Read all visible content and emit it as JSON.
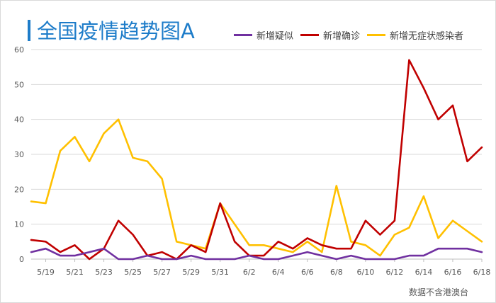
{
  "colors": {
    "title": "#1d7cc9",
    "series": [
      "#7030a0",
      "#c00000",
      "#ffc000"
    ],
    "grid": "#d9d9d9"
  },
  "source": "数据不含港澳台",
  "chart_data": {
    "type": "line",
    "title": "全国疫情趋势图A",
    "xlabel": "",
    "ylabel": "",
    "ylim": [
      0,
      60
    ],
    "yticks": [
      0,
      10,
      20,
      30,
      40,
      50,
      60
    ],
    "grid": "horizontal",
    "legend_position": "top-right",
    "x": [
      "5/18",
      "5/19",
      "5/20",
      "5/21",
      "5/22",
      "5/23",
      "5/24",
      "5/25",
      "5/26",
      "5/27",
      "5/28",
      "5/29",
      "5/30",
      "5/31",
      "6/1",
      "6/2",
      "6/3",
      "6/4",
      "6/5",
      "6/6",
      "6/7",
      "6/8",
      "6/9",
      "6/10",
      "6/11",
      "6/12",
      "6/13",
      "6/14",
      "6/15",
      "6/16",
      "6/17",
      "6/18"
    ],
    "xtick_labels": [
      "5/19",
      "5/21",
      "5/23",
      "5/25",
      "5/27",
      "5/29",
      "5/31",
      "6/2",
      "6/4",
      "6/6",
      "6/8",
      "6/10",
      "6/12",
      "6/14",
      "6/16",
      "6/18"
    ],
    "series": [
      {
        "name": "新增疑似",
        "values": [
          2,
          3,
          1,
          1,
          2,
          3,
          0,
          0,
          1,
          0,
          0,
          1,
          0,
          0,
          0,
          1,
          0,
          0,
          1,
          2,
          1,
          0,
          1,
          0,
          0,
          0,
          1,
          1,
          3,
          3,
          3,
          2
        ]
      },
      {
        "name": "新增确诊",
        "values": [
          5.5,
          5,
          2,
          4,
          0,
          3,
          11,
          7,
          1,
          2,
          0,
          4,
          2,
          16,
          5,
          1,
          1,
          5,
          3,
          6,
          4,
          3,
          3,
          11,
          7,
          11,
          57,
          49,
          40,
          44,
          28,
          32
        ]
      },
      {
        "name": "新增无症状感染者",
        "values": [
          16.5,
          16,
          31,
          35,
          28,
          36,
          40,
          29,
          28,
          23,
          5,
          4,
          3,
          16,
          10,
          4,
          4,
          3,
          2,
          5,
          2,
          21,
          5,
          4,
          1,
          7,
          9,
          18,
          6,
          11,
          8,
          5
        ]
      }
    ]
  }
}
